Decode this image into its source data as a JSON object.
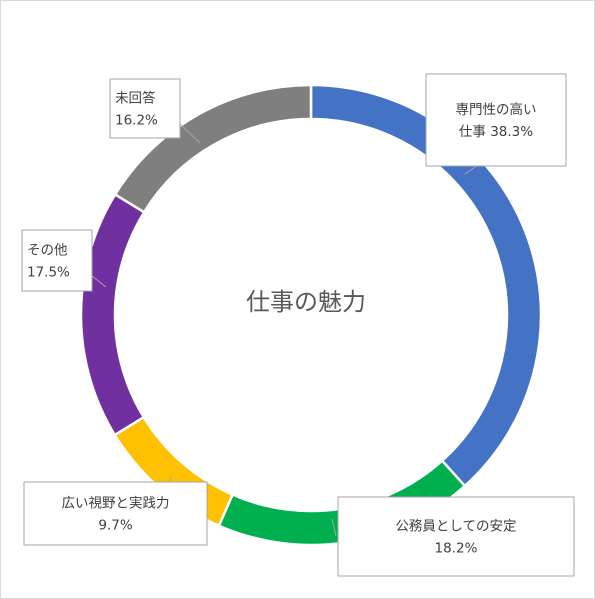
{
  "chart_data": {
    "type": "pie",
    "title": "仕事の魅力",
    "categories": [
      "専門性の高い仕事",
      "公務員としての安定",
      "広い視野と実践力",
      "その他",
      "未回答"
    ],
    "values": [
      38.3,
      18.2,
      9.7,
      17.5,
      16.2
    ],
    "unit": "%",
    "labels": [
      {
        "lines": [
          "専門性の高い",
          "仕事 38.3%"
        ]
      },
      {
        "lines": [
          "公務員としての安定",
          "18.2%"
        ]
      },
      {
        "lines": [
          "広い視野と実践力",
          "9.7%"
        ]
      },
      {
        "lines": [
          "その他",
          "17.5%"
        ]
      },
      {
        "lines": [
          "未回答",
          "16.2%"
        ]
      }
    ],
    "colors": [
      "#4472c4",
      "#00b04f",
      "#ffc000",
      "#7030a0",
      "#7f7f7f"
    ],
    "legend": "none"
  }
}
